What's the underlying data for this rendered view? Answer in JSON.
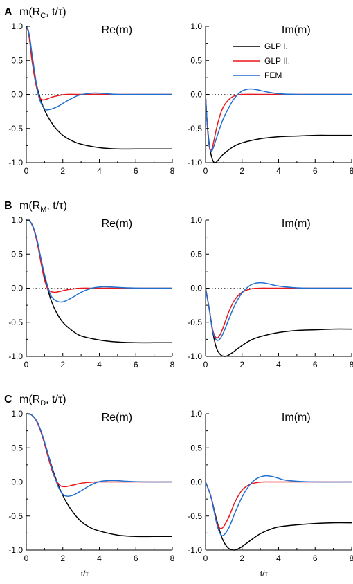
{
  "colors": {
    "GLP I.": "#000000",
    "GLP II.": "#e8171b",
    "FEM": "#1f6fd1",
    "zero_line": "#555555"
  },
  "legend": {
    "placement": "top-right of panel A Im(m)",
    "entries": [
      "GLP I.",
      "GLP II.",
      "FEM"
    ]
  },
  "rows": [
    {
      "letter": "A",
      "label": "m(R",
      "subscript": "C",
      "suffix": ", t/τ)"
    },
    {
      "letter": "B",
      "label": "m(R",
      "subscript": "M",
      "suffix": ", t/τ)"
    },
    {
      "letter": "C",
      "label": "m(R",
      "subscript": "D",
      "suffix": ", t/τ)"
    }
  ],
  "chart_data": [
    {
      "panel": "A-Re",
      "type": "line",
      "title": "Re(m)",
      "xlabel": "",
      "ylabel": "",
      "xlim": [
        0,
        8
      ],
      "ylim": [
        -1.0,
        1.0
      ],
      "xticks": [
        "0",
        "2",
        "4",
        "6",
        "8"
      ],
      "yticks": [
        "1.0",
        "0.5",
        "0.0",
        "-0.5",
        "-1.0"
      ],
      "zero_line": "dotted",
      "grid": false,
      "series": [
        {
          "name": "GLP I.",
          "x": [
            0,
            0.1,
            0.2,
            0.3,
            0.5,
            0.7,
            1.0,
            1.5,
            2.0,
            2.5,
            3.0,
            4.0,
            5.0,
            6.0,
            7.0,
            8.0
          ],
          "y": [
            1.0,
            0.93,
            0.78,
            0.55,
            0.22,
            0.0,
            -0.23,
            -0.46,
            -0.6,
            -0.68,
            -0.73,
            -0.78,
            -0.8,
            -0.8,
            -0.8,
            -0.8
          ]
        },
        {
          "name": "GLP II.",
          "x": [
            0,
            0.1,
            0.2,
            0.3,
            0.5,
            0.7,
            0.9,
            1.1,
            1.4,
            1.8,
            2.2,
            3.0,
            4.0,
            6.0,
            8.0
          ],
          "y": [
            1.0,
            0.93,
            0.75,
            0.52,
            0.18,
            -0.03,
            -0.08,
            -0.07,
            -0.04,
            -0.015,
            0.0,
            0.0,
            0.0,
            0.0,
            0.0
          ]
        },
        {
          "name": "FEM",
          "x": [
            0,
            0.1,
            0.2,
            0.3,
            0.5,
            0.7,
            1.0,
            1.3,
            1.7,
            2.2,
            2.8,
            3.3,
            3.7,
            4.2,
            5.0,
            6.0,
            8.0
          ],
          "y": [
            1.0,
            0.95,
            0.82,
            0.62,
            0.25,
            -0.05,
            -0.21,
            -0.22,
            -0.18,
            -0.1,
            -0.02,
            0.01,
            0.02,
            0.015,
            0.0,
            0.0,
            0.0
          ]
        }
      ]
    },
    {
      "panel": "A-Im",
      "type": "line",
      "title": "Im(m)",
      "xlabel": "",
      "ylabel": "",
      "xlim": [
        0,
        8
      ],
      "ylim": [
        -1.0,
        1.0
      ],
      "xticks": [
        "0",
        "2",
        "4",
        "6",
        "8"
      ],
      "yticks": [
        "1.0",
        "0.5",
        "0.0",
        "-0.5",
        "-1.0"
      ],
      "zero_line": "dotted",
      "grid": false,
      "series": [
        {
          "name": "GLP I.",
          "x": [
            0,
            0.05,
            0.1,
            0.2,
            0.3,
            0.4,
            0.5,
            0.6,
            0.8,
            1.0,
            1.5,
            2.0,
            3.0,
            4.0,
            5.0,
            6.0,
            7.0,
            8.0
          ],
          "y": [
            0.0,
            -0.25,
            -0.45,
            -0.72,
            -0.88,
            -0.97,
            -1.0,
            -0.99,
            -0.93,
            -0.87,
            -0.77,
            -0.71,
            -0.65,
            -0.62,
            -0.61,
            -0.6,
            -0.6,
            -0.6
          ]
        },
        {
          "name": "GLP II.",
          "x": [
            0,
            0.05,
            0.1,
            0.2,
            0.3,
            0.4,
            0.6,
            0.8,
            1.0,
            1.3,
            1.6,
            2.0,
            3.0,
            4.0,
            8.0
          ],
          "y": [
            0.0,
            -0.25,
            -0.48,
            -0.76,
            -0.82,
            -0.75,
            -0.5,
            -0.3,
            -0.17,
            -0.07,
            -0.02,
            0.0,
            0.0,
            0.0,
            0.0
          ]
        },
        {
          "name": "FEM",
          "x": [
            0,
            0.05,
            0.1,
            0.2,
            0.3,
            0.4,
            0.6,
            0.8,
            1.0,
            1.3,
            1.6,
            2.0,
            2.4,
            2.8,
            3.3,
            4.0,
            5.0,
            6.0,
            8.0
          ],
          "y": [
            0.0,
            -0.25,
            -0.45,
            -0.74,
            -0.83,
            -0.8,
            -0.64,
            -0.48,
            -0.34,
            -0.18,
            -0.05,
            0.05,
            0.08,
            0.07,
            0.04,
            0.01,
            0.0,
            0.0,
            0.0
          ]
        }
      ]
    },
    {
      "panel": "B-Re",
      "type": "line",
      "title": "Re(m)",
      "xlabel": "",
      "ylabel": "",
      "xlim": [
        0,
        8
      ],
      "ylim": [
        -1.0,
        1.0
      ],
      "xticks": [
        "0",
        "2",
        "4",
        "6",
        "8"
      ],
      "yticks": [
        "1.0",
        "0.5",
        "0.0",
        "-0.5",
        "-1.0"
      ],
      "zero_line": "dotted",
      "grid": false,
      "series": [
        {
          "name": "GLP I.",
          "x": [
            0,
            0.2,
            0.4,
            0.6,
            0.8,
            1.0,
            1.3,
            1.6,
            2.0,
            2.5,
            3.0,
            4.0,
            5.0,
            6.0,
            7.0,
            8.0
          ],
          "y": [
            1.0,
            0.98,
            0.88,
            0.68,
            0.42,
            0.17,
            -0.13,
            -0.33,
            -0.5,
            -0.62,
            -0.7,
            -0.76,
            -0.79,
            -0.8,
            -0.8,
            -0.8
          ]
        },
        {
          "name": "GLP II.",
          "x": [
            0,
            0.2,
            0.4,
            0.6,
            0.8,
            1.0,
            1.2,
            1.5,
            1.8,
            2.2,
            2.6,
            3.0,
            4.0,
            6.0,
            8.0
          ],
          "y": [
            1.0,
            0.98,
            0.87,
            0.66,
            0.38,
            0.12,
            -0.02,
            -0.06,
            -0.05,
            -0.025,
            -0.01,
            0.0,
            0.0,
            0.0,
            0.0
          ]
        },
        {
          "name": "FEM",
          "x": [
            0,
            0.2,
            0.4,
            0.6,
            0.8,
            1.0,
            1.3,
            1.6,
            2.0,
            2.5,
            3.0,
            3.6,
            4.2,
            4.8,
            5.5,
            6.5,
            8.0
          ],
          "y": [
            1.0,
            0.98,
            0.88,
            0.7,
            0.44,
            0.2,
            -0.08,
            -0.18,
            -0.2,
            -0.14,
            -0.06,
            0.0,
            0.02,
            0.015,
            0.005,
            0.0,
            0.0
          ]
        }
      ]
    },
    {
      "panel": "B-Im",
      "type": "line",
      "title": "Im(m)",
      "xlabel": "",
      "ylabel": "",
      "xlim": [
        0,
        8
      ],
      "ylim": [
        -1.0,
        1.0
      ],
      "xticks": [
        "0",
        "2",
        "4",
        "6",
        "8"
      ],
      "yticks": [
        "1.0",
        "0.5",
        "0.0",
        "-0.5",
        "-1.0"
      ],
      "zero_line": "dotted",
      "grid": false,
      "series": [
        {
          "name": "GLP I.",
          "x": [
            0,
            0.2,
            0.4,
            0.6,
            0.8,
            1.0,
            1.2,
            1.5,
            2.0,
            2.5,
            3.0,
            4.0,
            5.0,
            6.0,
            7.0,
            8.0
          ],
          "y": [
            0.0,
            -0.3,
            -0.65,
            -0.88,
            -0.97,
            -1.0,
            -0.99,
            -0.94,
            -0.84,
            -0.76,
            -0.71,
            -0.65,
            -0.62,
            -0.61,
            -0.6,
            -0.6
          ]
        },
        {
          "name": "GLP II.",
          "x": [
            0,
            0.2,
            0.4,
            0.6,
            0.8,
            1.0,
            1.3,
            1.6,
            2.0,
            2.5,
            3.0,
            4.0,
            8.0
          ],
          "y": [
            0.0,
            -0.3,
            -0.62,
            -0.73,
            -0.68,
            -0.55,
            -0.33,
            -0.17,
            -0.06,
            -0.01,
            0.0,
            0.0,
            0.0
          ]
        },
        {
          "name": "FEM",
          "x": [
            0,
            0.2,
            0.4,
            0.6,
            0.8,
            1.0,
            1.3,
            1.6,
            2.0,
            2.5,
            3.0,
            3.5,
            4.0,
            5.0,
            6.0,
            8.0
          ],
          "y": [
            0.0,
            -0.3,
            -0.64,
            -0.76,
            -0.74,
            -0.64,
            -0.44,
            -0.25,
            -0.07,
            0.05,
            0.08,
            0.06,
            0.03,
            0.005,
            0.0,
            0.0
          ]
        }
      ]
    },
    {
      "panel": "C-Re",
      "type": "line",
      "title": "Re(m)",
      "xlabel": "t/τ",
      "ylabel": "",
      "xlim": [
        0,
        8
      ],
      "ylim": [
        -1.0,
        1.0
      ],
      "xticks": [
        "0",
        "2",
        "4",
        "6",
        "8"
      ],
      "yticks": [
        "1.0",
        "0.5",
        "0.0",
        "-0.5",
        "-1.0"
      ],
      "zero_line": "dotted",
      "grid": false,
      "series": [
        {
          "name": "GLP I.",
          "x": [
            0,
            0.3,
            0.6,
            0.9,
            1.2,
            1.5,
            1.8,
            2.2,
            2.6,
            3.0,
            3.5,
            4.0,
            5.0,
            6.0,
            7.0,
            8.0
          ],
          "y": [
            1.0,
            0.98,
            0.88,
            0.67,
            0.4,
            0.14,
            -0.08,
            -0.3,
            -0.46,
            -0.58,
            -0.67,
            -0.72,
            -0.78,
            -0.8,
            -0.8,
            -0.8
          ]
        },
        {
          "name": "GLP II.",
          "x": [
            0,
            0.3,
            0.6,
            0.9,
            1.2,
            1.5,
            1.8,
            2.1,
            2.5,
            3.0,
            3.5,
            4.0,
            6.0,
            8.0
          ],
          "y": [
            1.0,
            0.98,
            0.87,
            0.65,
            0.36,
            0.1,
            -0.04,
            -0.07,
            -0.05,
            -0.02,
            -0.005,
            0.0,
            0.0,
            0.0
          ]
        },
        {
          "name": "FEM",
          "x": [
            0,
            0.3,
            0.6,
            0.9,
            1.2,
            1.5,
            1.8,
            2.1,
            2.5,
            3.0,
            3.5,
            4.0,
            4.5,
            5.0,
            5.5,
            6.5,
            8.0
          ],
          "y": [
            1.0,
            0.98,
            0.88,
            0.67,
            0.4,
            0.12,
            -0.1,
            -0.2,
            -0.2,
            -0.13,
            -0.05,
            0.005,
            0.02,
            0.02,
            0.01,
            0.0,
            0.0
          ]
        }
      ]
    },
    {
      "panel": "C-Im",
      "type": "line",
      "title": "Im(m)",
      "xlabel": "t/τ",
      "ylabel": "",
      "xlim": [
        0,
        8
      ],
      "ylim": [
        -1.0,
        1.0
      ],
      "xticks": [
        "0",
        "2",
        "4",
        "6",
        "8"
      ],
      "yticks": [
        "1.0",
        "0.5",
        "0.0",
        "-0.5",
        "-1.0"
      ],
      "zero_line": "dotted",
      "grid": false,
      "series": [
        {
          "name": "GLP I.",
          "x": [
            0,
            0.3,
            0.6,
            0.9,
            1.2,
            1.5,
            1.8,
            2.2,
            2.6,
            3.0,
            3.5,
            4.0,
            5.0,
            6.0,
            7.0,
            8.0
          ],
          "y": [
            0.0,
            -0.22,
            -0.55,
            -0.82,
            -0.96,
            -1.0,
            -0.98,
            -0.91,
            -0.83,
            -0.76,
            -0.7,
            -0.66,
            -0.63,
            -0.61,
            -0.6,
            -0.6
          ]
        },
        {
          "name": "GLP II.",
          "x": [
            0,
            0.3,
            0.6,
            0.8,
            1.0,
            1.3,
            1.6,
            2.0,
            2.4,
            2.8,
            3.2,
            4.0,
            8.0
          ],
          "y": [
            0.0,
            -0.22,
            -0.58,
            -0.68,
            -0.65,
            -0.5,
            -0.3,
            -0.12,
            -0.04,
            -0.01,
            0.0,
            0.0,
            0.0
          ]
        },
        {
          "name": "FEM",
          "x": [
            0,
            0.3,
            0.6,
            0.8,
            1.0,
            1.3,
            1.6,
            2.0,
            2.4,
            2.8,
            3.3,
            3.8,
            4.3,
            5.0,
            6.0,
            8.0
          ],
          "y": [
            0.0,
            -0.22,
            -0.6,
            -0.76,
            -0.78,
            -0.66,
            -0.46,
            -0.22,
            -0.05,
            0.05,
            0.09,
            0.07,
            0.03,
            0.01,
            0.0,
            0.0
          ]
        }
      ]
    }
  ]
}
